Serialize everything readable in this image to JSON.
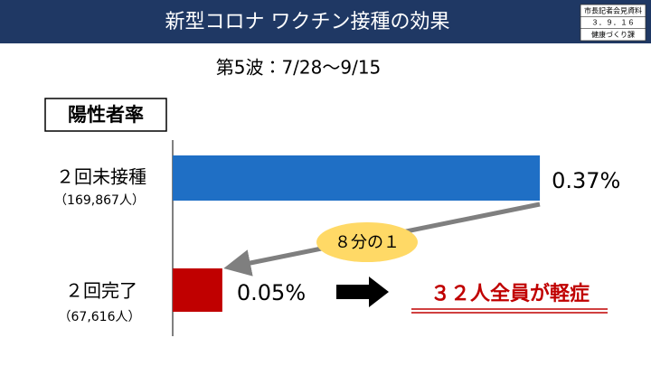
{
  "header": {
    "badge": [
      "市長記者会見資料",
      "３．９．１６",
      "健康づくり課"
    ]
  },
  "chart_data": {
    "type": "bar",
    "orientation": "horizontal",
    "title": "新型コロナ ワクチン接種の効果",
    "subtitle": "第5波：7/28～9/15",
    "axis_label": "陽性者率",
    "categories": [
      "２回未接種",
      "２回完了"
    ],
    "category_notes": [
      "（169,867人）",
      "（67,616人）"
    ],
    "values": [
      0.37,
      0.05
    ],
    "value_labels": [
      "0.37%",
      "0.05%"
    ],
    "colors": [
      "#1f6fc5",
      "#c00000"
    ],
    "xlim": [
      0,
      0.4
    ],
    "annotations": {
      "ratio": "８分の１",
      "result": "３２人全員が軽症"
    }
  }
}
